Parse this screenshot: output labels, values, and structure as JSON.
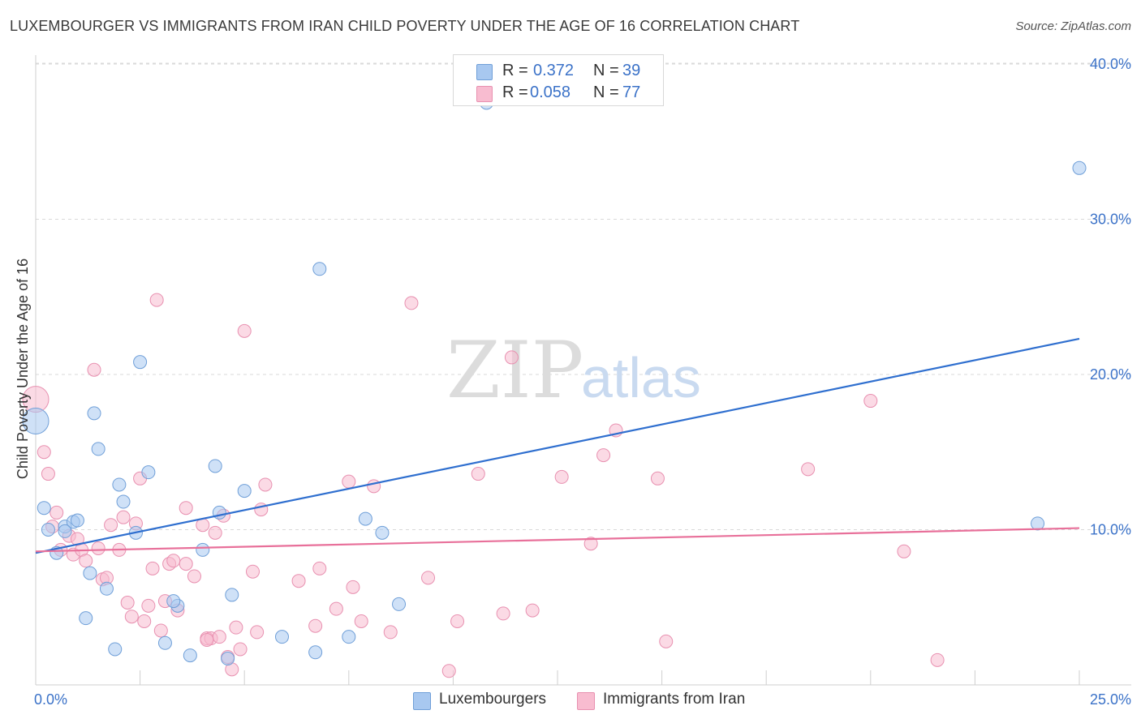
{
  "title": "LUXEMBOURGER VS IMMIGRANTS FROM IRAN CHILD POVERTY UNDER THE AGE OF 16 CORRELATION CHART",
  "source": "Source: ZipAtlas.com",
  "watermark": {
    "zip": "ZIP",
    "atlas": "atlas"
  },
  "legend": {
    "series1": {
      "r_label": "R =",
      "r_value": "0.372",
      "n_label": "N =",
      "n_value": "39"
    },
    "series2": {
      "r_label": "R =",
      "r_value": "0.058",
      "n_label": "N =",
      "n_value": "77"
    }
  },
  "bottom_legend": {
    "series1": "Luxembourgers",
    "series2": "Immigrants from Iran"
  },
  "colors": {
    "series1_fill": "#a8c8f0",
    "series1_stroke": "#6f9fd8",
    "series1_line": "#2f6fcf",
    "series2_fill": "#f8bcd0",
    "series2_stroke": "#e890b0",
    "series2_line": "#e8709a",
    "tick": "#3b72c8",
    "grid": "#d9d9d9"
  },
  "chart_data": {
    "type": "scatter",
    "title": "LUXEMBOURGER VS IMMIGRANTS FROM IRAN CHILD POVERTY UNDER THE AGE OF 16 CORRELATION CHART",
    "xlabel": "",
    "ylabel": "Child Poverty Under the Age of 16",
    "xlim": [
      0,
      25
    ],
    "ylim": [
      0,
      40
    ],
    "x_ticks": [
      "0.0%",
      "25.0%"
    ],
    "y_ticks": [
      {
        "value": 10,
        "label": "10.0%"
      },
      {
        "value": 20,
        "label": "20.0%"
      },
      {
        "value": 30,
        "label": "30.0%"
      },
      {
        "value": 40,
        "label": "40.0%"
      }
    ],
    "grid": true,
    "legend_position": "top-center",
    "series": [
      {
        "name": "Luxembourgers",
        "trend": {
          "x": [
            0,
            25
          ],
          "y": [
            8.5,
            22.3
          ]
        },
        "points": [
          {
            "x": 0.0,
            "y": 17.0,
            "s": 16
          },
          {
            "x": 0.2,
            "y": 11.4
          },
          {
            "x": 0.3,
            "y": 10.0
          },
          {
            "x": 0.5,
            "y": 8.5
          },
          {
            "x": 0.7,
            "y": 10.2
          },
          {
            "x": 0.9,
            "y": 10.5
          },
          {
            "x": 1.0,
            "y": 10.6
          },
          {
            "x": 1.2,
            "y": 4.3
          },
          {
            "x": 1.3,
            "y": 7.2
          },
          {
            "x": 1.4,
            "y": 17.5
          },
          {
            "x": 1.5,
            "y": 15.2
          },
          {
            "x": 1.7,
            "y": 6.2
          },
          {
            "x": 1.9,
            "y": 2.3
          },
          {
            "x": 2.0,
            "y": 12.9
          },
          {
            "x": 2.1,
            "y": 11.8
          },
          {
            "x": 2.4,
            "y": 9.8
          },
          {
            "x": 2.5,
            "y": 20.8
          },
          {
            "x": 2.7,
            "y": 13.7
          },
          {
            "x": 3.1,
            "y": 2.7
          },
          {
            "x": 3.4,
            "y": 5.1
          },
          {
            "x": 3.7,
            "y": 1.9
          },
          {
            "x": 4.0,
            "y": 8.7
          },
          {
            "x": 4.3,
            "y": 14.1
          },
          {
            "x": 4.4,
            "y": 11.1
          },
          {
            "x": 4.6,
            "y": 1.7
          },
          {
            "x": 4.7,
            "y": 5.8
          },
          {
            "x": 5.0,
            "y": 12.5
          },
          {
            "x": 5.9,
            "y": 3.1
          },
          {
            "x": 6.8,
            "y": 26.8
          },
          {
            "x": 6.7,
            "y": 2.1
          },
          {
            "x": 7.5,
            "y": 3.1
          },
          {
            "x": 7.9,
            "y": 10.7
          },
          {
            "x": 8.3,
            "y": 9.8
          },
          {
            "x": 8.7,
            "y": 5.2
          },
          {
            "x": 10.8,
            "y": 37.5
          },
          {
            "x": 24.0,
            "y": 10.4
          },
          {
            "x": 25.0,
            "y": 33.3
          },
          {
            "x": 0.7,
            "y": 9.9
          },
          {
            "x": 3.3,
            "y": 5.4
          }
        ]
      },
      {
        "name": "Immigrants from Iran",
        "trend": {
          "x": [
            0,
            25
          ],
          "y": [
            8.6,
            10.1
          ]
        },
        "points": [
          {
            "x": 0.0,
            "y": 18.4,
            "s": 16
          },
          {
            "x": 0.2,
            "y": 15.0
          },
          {
            "x": 0.3,
            "y": 13.6
          },
          {
            "x": 0.4,
            "y": 10.2
          },
          {
            "x": 0.5,
            "y": 11.1
          },
          {
            "x": 0.6,
            "y": 8.7
          },
          {
            "x": 0.8,
            "y": 9.6
          },
          {
            "x": 0.9,
            "y": 8.4
          },
          {
            "x": 1.0,
            "y": 9.4
          },
          {
            "x": 1.1,
            "y": 8.7
          },
          {
            "x": 1.2,
            "y": 8.0
          },
          {
            "x": 1.4,
            "y": 20.3
          },
          {
            "x": 1.5,
            "y": 8.8
          },
          {
            "x": 1.6,
            "y": 6.8
          },
          {
            "x": 1.7,
            "y": 6.9
          },
          {
            "x": 1.8,
            "y": 10.3
          },
          {
            "x": 2.0,
            "y": 8.7
          },
          {
            "x": 2.1,
            "y": 10.8
          },
          {
            "x": 2.2,
            "y": 5.3
          },
          {
            "x": 2.3,
            "y": 4.4
          },
          {
            "x": 2.4,
            "y": 10.4
          },
          {
            "x": 2.5,
            "y": 13.3
          },
          {
            "x": 2.6,
            "y": 4.1
          },
          {
            "x": 2.7,
            "y": 5.1
          },
          {
            "x": 2.8,
            "y": 7.5
          },
          {
            "x": 2.9,
            "y": 24.8
          },
          {
            "x": 3.0,
            "y": 3.5
          },
          {
            "x": 3.1,
            "y": 5.4
          },
          {
            "x": 3.2,
            "y": 7.8
          },
          {
            "x": 3.3,
            "y": 8.0
          },
          {
            "x": 3.4,
            "y": 4.8
          },
          {
            "x": 3.6,
            "y": 11.4
          },
          {
            "x": 3.6,
            "y": 7.8
          },
          {
            "x": 3.8,
            "y": 7.0
          },
          {
            "x": 4.0,
            "y": 10.3
          },
          {
            "x": 4.1,
            "y": 3.0
          },
          {
            "x": 4.2,
            "y": 3.0
          },
          {
            "x": 4.3,
            "y": 9.8
          },
          {
            "x": 4.4,
            "y": 3.1
          },
          {
            "x": 4.5,
            "y": 10.9
          },
          {
            "x": 4.6,
            "y": 1.8
          },
          {
            "x": 4.7,
            "y": 1.0
          },
          {
            "x": 4.8,
            "y": 3.7
          },
          {
            "x": 4.9,
            "y": 2.3
          },
          {
            "x": 5.0,
            "y": 22.8
          },
          {
            "x": 5.2,
            "y": 7.3
          },
          {
            "x": 5.3,
            "y": 3.4
          },
          {
            "x": 5.4,
            "y": 11.3
          },
          {
            "x": 5.5,
            "y": 12.9
          },
          {
            "x": 6.3,
            "y": 6.7
          },
          {
            "x": 6.7,
            "y": 3.8
          },
          {
            "x": 6.8,
            "y": 7.5
          },
          {
            "x": 7.2,
            "y": 4.9
          },
          {
            "x": 7.5,
            "y": 13.1
          },
          {
            "x": 7.6,
            "y": 6.3
          },
          {
            "x": 7.8,
            "y": 4.1
          },
          {
            "x": 8.1,
            "y": 12.8
          },
          {
            "x": 8.5,
            "y": 3.4
          },
          {
            "x": 9.0,
            "y": 24.6
          },
          {
            "x": 9.4,
            "y": 6.9
          },
          {
            "x": 9.9,
            "y": 0.9
          },
          {
            "x": 10.1,
            "y": 4.1
          },
          {
            "x": 10.6,
            "y": 13.6
          },
          {
            "x": 11.2,
            "y": 4.6
          },
          {
            "x": 11.4,
            "y": 21.1
          },
          {
            "x": 11.9,
            "y": 4.8
          },
          {
            "x": 12.6,
            "y": 13.4
          },
          {
            "x": 13.3,
            "y": 9.1
          },
          {
            "x": 13.6,
            "y": 14.8
          },
          {
            "x": 13.9,
            "y": 16.4
          },
          {
            "x": 14.9,
            "y": 13.3
          },
          {
            "x": 15.1,
            "y": 2.8
          },
          {
            "x": 18.5,
            "y": 13.9
          },
          {
            "x": 20.0,
            "y": 18.3
          },
          {
            "x": 20.8,
            "y": 8.6
          },
          {
            "x": 21.6,
            "y": 1.6
          },
          {
            "x": 4.1,
            "y": 2.9
          }
        ]
      }
    ]
  }
}
